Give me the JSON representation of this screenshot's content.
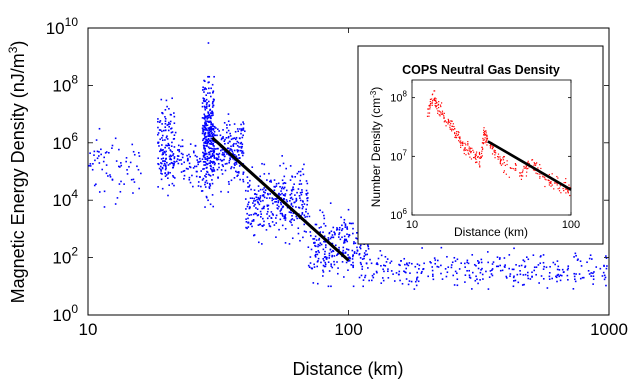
{
  "chart_data": [
    {
      "type": "scatter",
      "title": "",
      "xlabel": "Distance (km)",
      "ylabel_prefix": "Magnetic Energy Density (nJ/m",
      "ylabel_exp": "3",
      "ylabel_suffix": ")",
      "xscale": "log",
      "yscale": "log",
      "xlim": [
        10,
        1000
      ],
      "ylim": [
        1,
        10000000000.0
      ],
      "xticks": [
        {
          "value": 10,
          "label": "10"
        },
        {
          "value": 100,
          "label": "100"
        },
        {
          "value": 1000,
          "label": "1000"
        }
      ],
      "yticks": [
        {
          "value": 1,
          "base": "10",
          "exp": "0"
        },
        {
          "value": 100,
          "base": "10",
          "exp": "2"
        },
        {
          "value": 10000,
          "base": "10",
          "exp": "4"
        },
        {
          "value": 1000000,
          "base": "10",
          "exp": "6"
        },
        {
          "value": 100000000,
          "base": "10",
          "exp": "8"
        },
        {
          "value": 10000000000,
          "base": "10",
          "exp": "10"
        }
      ],
      "series_color": "#0000ff",
      "fit_color": "#000000",
      "fit_line": {
        "x": [
          30,
          100
        ],
        "y": [
          1500000,
          80
        ]
      },
      "clusters": [
        {
          "x": [
            10,
            16
          ],
          "y": [
            1000,
            5000000
          ],
          "center_y": 120000,
          "n": 70
        },
        {
          "x": [
            18.5,
            21.5
          ],
          "y": [
            3000,
            50000000
          ],
          "center_y": 700000,
          "n": 150
        },
        {
          "x": [
            21.5,
            27.5
          ],
          "y": [
            8000,
            3000000
          ],
          "center_y": 200000,
          "n": 70
        },
        {
          "x": [
            27.5,
            30.5
          ],
          "y": [
            1000,
            200000000
          ],
          "center_y": 2000000,
          "n": 330
        },
        {
          "x": [
            30.5,
            40
          ],
          "y": [
            10000,
            10000000
          ],
          "center_y": 500000,
          "n": 200
        },
        {
          "x": [
            40,
            70
          ],
          "y": [
            300,
            500000
          ],
          "center_y": 8000,
          "n": 330
        },
        {
          "x": [
            70,
            120
          ],
          "y": [
            10,
            10000
          ],
          "center_y": 250,
          "n": 270
        },
        {
          "x": [
            120,
            1000
          ],
          "y": [
            8,
            300
          ],
          "center_y": 35,
          "n": 300
        }
      ],
      "sample_points": [
        {
          "x": 29,
          "y": 3000000000
        },
        {
          "x": 20,
          "y": 30000000
        },
        {
          "x": 30,
          "y": 100000
        },
        {
          "x": 60,
          "y": 5000
        },
        {
          "x": 100,
          "y": 100
        },
        {
          "x": 300,
          "y": 30
        },
        {
          "x": 800,
          "y": 20
        }
      ]
    },
    {
      "type": "scatter",
      "title": "COPS Neutral Gas Density",
      "xlabel": "Distance (km)",
      "ylabel_prefix": "Number Density (cm",
      "ylabel_exp": "-3",
      "ylabel_suffix": ")",
      "xscale": "log",
      "yscale": "log",
      "xlim": [
        10,
        100
      ],
      "ylim": [
        1000000,
        200000000
      ],
      "xticks": [
        {
          "value": 10,
          "label": "10"
        },
        {
          "value": 100,
          "label": "100"
        }
      ],
      "yticks": [
        {
          "value": 1000000,
          "base": "10",
          "exp": "6"
        },
        {
          "value": 10000000,
          "base": "10",
          "exp": "7"
        },
        {
          "value": 100000000,
          "base": "10",
          "exp": "8"
        }
      ],
      "series_color": "#ff0000",
      "fit_color": "#000000",
      "fit_line": {
        "x": [
          30,
          100
        ],
        "y": [
          18000000,
          2700000
        ]
      },
      "trace": [
        {
          "x": 12.5,
          "y": 50000000
        },
        {
          "x": 13.5,
          "y": 110000000
        },
        {
          "x": 14.5,
          "y": 70000000
        },
        {
          "x": 16,
          "y": 45000000
        },
        {
          "x": 18,
          "y": 30000000
        },
        {
          "x": 20,
          "y": 20000000
        },
        {
          "x": 22,
          "y": 14000000
        },
        {
          "x": 25,
          "y": 10000000
        },
        {
          "x": 27,
          "y": 8000000
        },
        {
          "x": 28.5,
          "y": 25000000
        },
        {
          "x": 30,
          "y": 20000000
        },
        {
          "x": 35,
          "y": 9000000
        },
        {
          "x": 40,
          "y": 7000000
        },
        {
          "x": 50,
          "y": 5000000
        },
        {
          "x": 55,
          "y": 8000000
        },
        {
          "x": 65,
          "y": 5000000
        },
        {
          "x": 75,
          "y": 3800000
        },
        {
          "x": 90,
          "y": 3000000
        },
        {
          "x": 100,
          "y": 2600000
        }
      ]
    }
  ]
}
